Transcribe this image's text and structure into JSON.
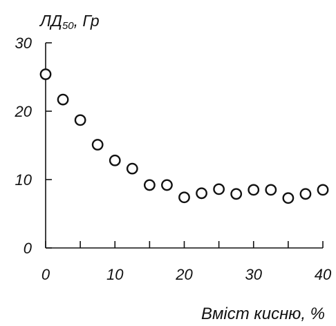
{
  "chart_data": {
    "type": "scatter",
    "ylabel": {
      "prefix": "ЛД",
      "subscript": "50",
      "suffix": ", Гр"
    },
    "xlabel": "Вміст кисню,  %",
    "xlim": [
      0,
      40
    ],
    "ylim": [
      0,
      30
    ],
    "xticks": [
      0,
      10,
      20,
      30,
      40
    ],
    "xticks_minor": [
      5,
      15,
      25,
      35
    ],
    "yticks": [
      0,
      10,
      20,
      30
    ],
    "xtick_labels": [
      "0",
      "10",
      "20",
      "30",
      "40"
    ],
    "ytick_labels": [
      "0",
      "10",
      "20",
      "30"
    ],
    "grid": false,
    "marker": "open-circle",
    "points": [
      {
        "x": 0,
        "y": 25.4
      },
      {
        "x": 2.5,
        "y": 21.7
      },
      {
        "x": 5,
        "y": 18.7
      },
      {
        "x": 7.5,
        "y": 15.1
      },
      {
        "x": 10,
        "y": 12.8
      },
      {
        "x": 12.5,
        "y": 11.6
      },
      {
        "x": 15,
        "y": 9.2
      },
      {
        "x": 17.5,
        "y": 9.2
      },
      {
        "x": 20,
        "y": 7.4
      },
      {
        "x": 22.5,
        "y": 8.0
      },
      {
        "x": 25,
        "y": 8.6
      },
      {
        "x": 27.5,
        "y": 7.9
      },
      {
        "x": 30,
        "y": 8.5
      },
      {
        "x": 32.5,
        "y": 8.5
      },
      {
        "x": 35,
        "y": 7.3
      },
      {
        "x": 37.5,
        "y": 7.9
      },
      {
        "x": 40,
        "y": 8.5
      }
    ]
  }
}
